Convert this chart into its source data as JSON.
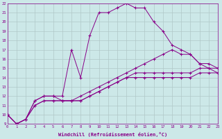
{
  "xlabel": "Windchill (Refroidissement éolien,°C)",
  "bg_color": "#cce8e8",
  "line_color": "#880088",
  "grid_color": "#b0c8c8",
  "xmin": 0,
  "xmax": 23,
  "ymin": 9,
  "ymax": 22,
  "line1_x": [
    0,
    1,
    2,
    3,
    4,
    5,
    6,
    7,
    8,
    9,
    10,
    11,
    12,
    13,
    14,
    15,
    16,
    17,
    18,
    19,
    20,
    21,
    22,
    23
  ],
  "line1_y": [
    10,
    9,
    9.5,
    11.5,
    12,
    12,
    12,
    17,
    14,
    18.5,
    21,
    21,
    21.5,
    22,
    21.5,
    21.5,
    20,
    19,
    17.5,
    17,
    16.5,
    15.5,
    15,
    15
  ],
  "line2_x": [
    0,
    1,
    2,
    3,
    4,
    5,
    6,
    7,
    8,
    9,
    10,
    11,
    12,
    13,
    14,
    15,
    16,
    17,
    18,
    19,
    20,
    21,
    22,
    23
  ],
  "line2_y": [
    10,
    9,
    9.5,
    11.5,
    12,
    12,
    11.5,
    11.5,
    12,
    12.5,
    13,
    13.5,
    14,
    14.5,
    15,
    15.5,
    16,
    16.5,
    17,
    16.5,
    16.5,
    15.5,
    15.5,
    15
  ],
  "line3_x": [
    0,
    1,
    2,
    3,
    4,
    5,
    6,
    7,
    8,
    9,
    10,
    11,
    12,
    13,
    14,
    15,
    16,
    17,
    18,
    19,
    20,
    21,
    22,
    23
  ],
  "line3_y": [
    10,
    9,
    9.5,
    11,
    11.5,
    11.5,
    11.5,
    11.5,
    11.5,
    12,
    12.5,
    13,
    13.5,
    14,
    14.5,
    14.5,
    14.5,
    14.5,
    14.5,
    14.5,
    14.5,
    15,
    15,
    14.5
  ],
  "line4_x": [
    0,
    1,
    2,
    3,
    4,
    5,
    6,
    7,
    8,
    9,
    10,
    11,
    12,
    13,
    14,
    15,
    16,
    17,
    18,
    19,
    20,
    21,
    22,
    23
  ],
  "line4_y": [
    10,
    9,
    9.5,
    11,
    11.5,
    11.5,
    11.5,
    11.5,
    11.5,
    12,
    12.5,
    13,
    13.5,
    14,
    14,
    14,
    14,
    14,
    14,
    14,
    14,
    14.5,
    14.5,
    14.5
  ]
}
